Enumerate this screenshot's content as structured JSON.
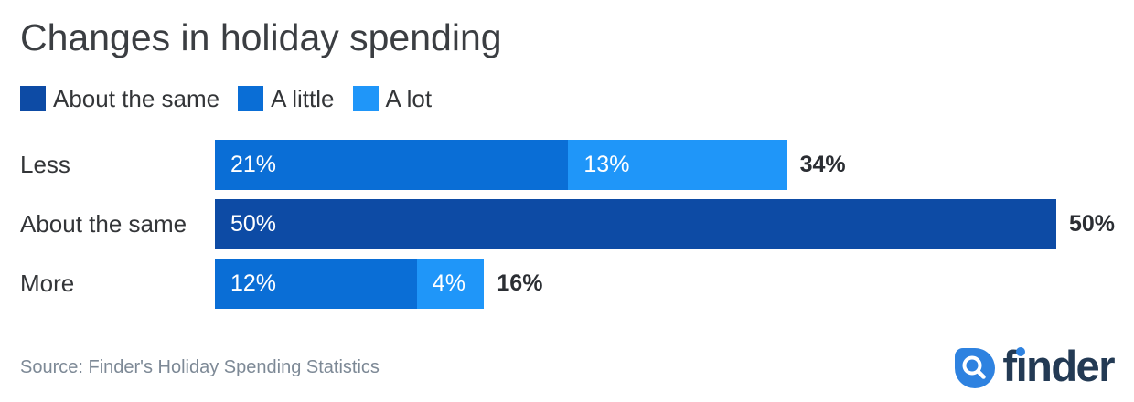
{
  "title": "Changes in holiday spending",
  "legend": [
    {
      "label": "About the same",
      "color": "#0d4ba5"
    },
    {
      "label": "A little",
      "color": "#0a6ed6"
    },
    {
      "label": "A lot",
      "color": "#1f96f9"
    }
  ],
  "chart_data": {
    "type": "bar",
    "orientation": "horizontal",
    "stacked": true,
    "title": "Changes in holiday spending",
    "categories": [
      "Less",
      "About the same",
      "More"
    ],
    "series": [
      {
        "name": "About the same",
        "color": "#0d4ba5",
        "values": [
          0,
          50,
          0
        ]
      },
      {
        "name": "A little",
        "color": "#0a6ed6",
        "values": [
          21,
          0,
          12
        ]
      },
      {
        "name": "A lot",
        "color": "#1f96f9",
        "values": [
          13,
          0,
          4
        ]
      }
    ],
    "totals": [
      34,
      50,
      16
    ],
    "xmax_percent": 50,
    "value_suffix": "%",
    "grid": false,
    "legend_position": "top",
    "rows": [
      {
        "label": "Less",
        "total": "34%",
        "segments": [
          {
            "series": "A little",
            "value": 21,
            "label": "21%",
            "color": "#0a6ed6"
          },
          {
            "series": "A lot",
            "value": 13,
            "label": "13%",
            "color": "#1f96f9"
          }
        ]
      },
      {
        "label": "About the same",
        "total": "50%",
        "segments": [
          {
            "series": "About the same",
            "value": 50,
            "label": "50%",
            "color": "#0d4ba5"
          }
        ]
      },
      {
        "label": "More",
        "total": "16%",
        "segments": [
          {
            "series": "A little",
            "value": 12,
            "label": "12%",
            "color": "#0a6ed6"
          },
          {
            "series": "A lot",
            "value": 4,
            "label": "4%",
            "color": "#1f96f9"
          }
        ]
      }
    ]
  },
  "footer": {
    "source": "Source: Finder's Holiday Spending Statistics",
    "logo_text": "finder",
    "logo_colors": {
      "mark": "#2e82e0",
      "wordmark": "#233a54",
      "i_dot": "#2e82e0"
    }
  }
}
